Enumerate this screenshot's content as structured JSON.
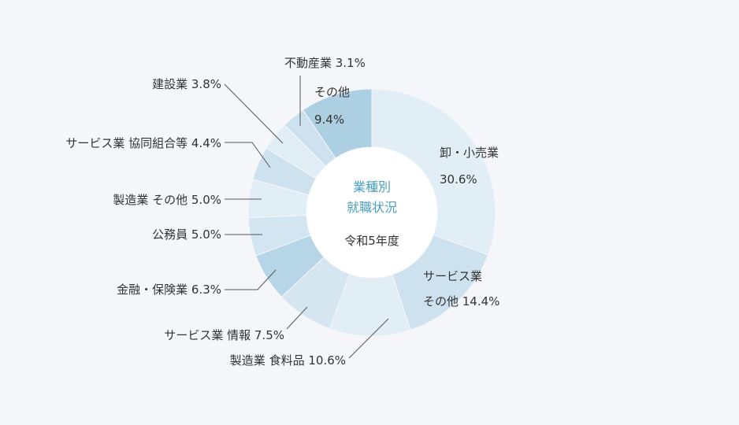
{
  "chart_data": {
    "type": "pie",
    "center": {
      "title_line1": "業種別",
      "title_line2": "就職状況",
      "subtitle": "令和5年度"
    },
    "slices": [
      {
        "label": "卸・小売業",
        "value": 30.6,
        "value_text": "30.6%",
        "color": "#e2eef6"
      },
      {
        "label": "サービス業 その他",
        "value": 14.4,
        "value_text": "14.4%",
        "color": "#cde2ee"
      },
      {
        "label": "製造業 食料品",
        "value": 10.6,
        "value_text": "10.6%",
        "color": "#e2eef6"
      },
      {
        "label": "サービス業 情報",
        "value": 7.5,
        "value_text": "7.5%",
        "color": "#d5e6f1"
      },
      {
        "label": "金融・保険業",
        "value": 6.3,
        "value_text": "6.3%",
        "color": "#b6d5e6"
      },
      {
        "label": "公務員",
        "value": 5.0,
        "value_text": "5.0%",
        "color": "#d3e5f0"
      },
      {
        "label": "製造業 その他",
        "value": 5.0,
        "value_text": "5.0%",
        "color": "#e2eef6"
      },
      {
        "label": "サービス業 協同組合等",
        "value": 4.4,
        "value_text": "4.4%",
        "color": "#cde2ee"
      },
      {
        "label": "建設業",
        "value": 3.8,
        "value_text": "3.8%",
        "color": "#e2eef6"
      },
      {
        "label": "不動産業",
        "value": 3.1,
        "value_text": "3.1%",
        "color": "#cde2ee"
      },
      {
        "label": "その他",
        "value": 9.4,
        "value_text": "9.4%",
        "color": "#acd0e2"
      }
    ],
    "text_labels": {
      "s0_line1": "卸・小売業",
      "s0_line2": "30.6%",
      "s1_line1": "サービス業",
      "s1_line2": "その他 14.4%",
      "s2": "製造業 食料品 10.6%",
      "s3": "サービス業 情報 7.5%",
      "s4": "金融・保険業 6.3%",
      "s5": "公務員 5.0%",
      "s6": "製造業 その他 5.0%",
      "s7": "サービス業 協同組合等 4.4%",
      "s8": "建設業 3.8%",
      "s9": "不動産業  3.1%",
      "s10_line1": "その他",
      "s10_line2": "9.4%"
    }
  }
}
